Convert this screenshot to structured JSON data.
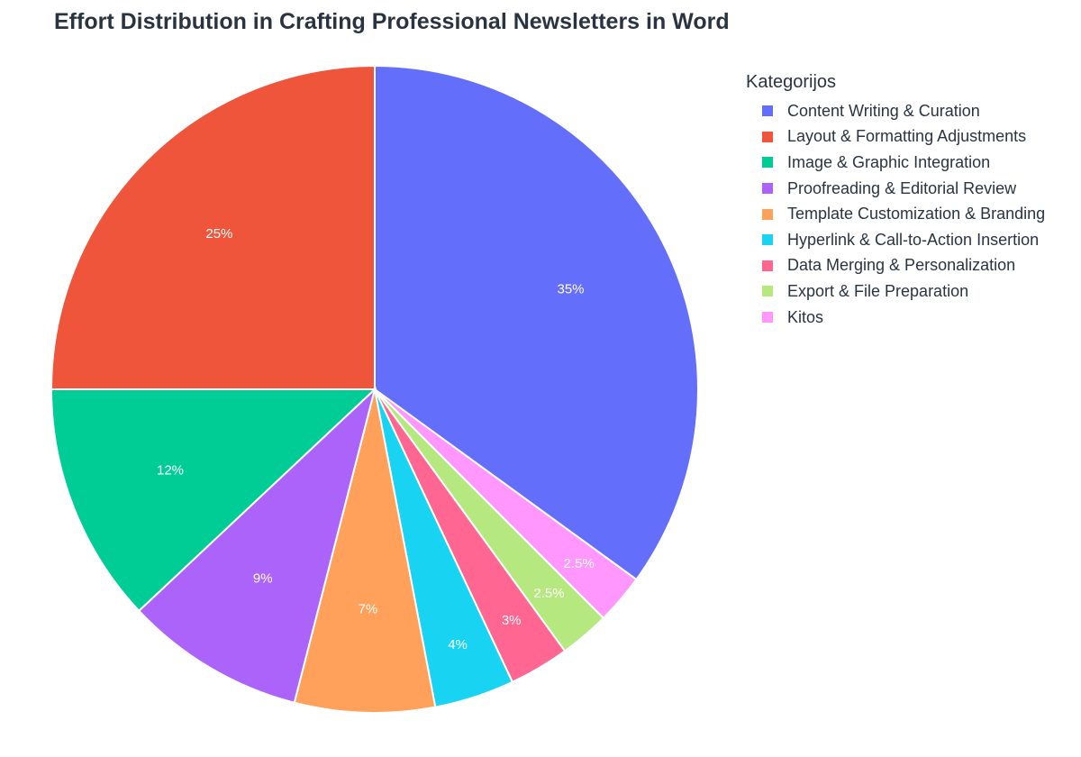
{
  "chart_data": {
    "type": "pie",
    "title": "Effort Distribution in Crafting Professional Newsletters in Word",
    "legend_title": "Kategorijos",
    "legend_position": "right",
    "categories": [
      "Content Writing & Curation",
      "Layout & Formatting Adjustments",
      "Image & Graphic Integration",
      "Proofreading & Editorial Review",
      "Template Customization & Branding",
      "Hyperlink & Call-to-Action Insertion",
      "Data Merging & Personalization",
      "Export & File Preparation",
      "Kitos"
    ],
    "values": [
      35,
      25,
      12,
      9,
      7,
      4,
      3,
      2.5,
      2.5
    ],
    "labels": [
      "35%",
      "25%",
      "12%",
      "9%",
      "7%",
      "4%",
      "3%",
      "2.5%",
      "2.5%"
    ],
    "colors": [
      "#636efa",
      "#ef553b",
      "#00cc96",
      "#ab63fa",
      "#ffa15a",
      "#19d3f3",
      "#ff6692",
      "#b6e880",
      "#ff97ff"
    ],
    "slice_order": [
      0,
      8,
      7,
      6,
      5,
      4,
      3,
      2,
      1
    ]
  }
}
